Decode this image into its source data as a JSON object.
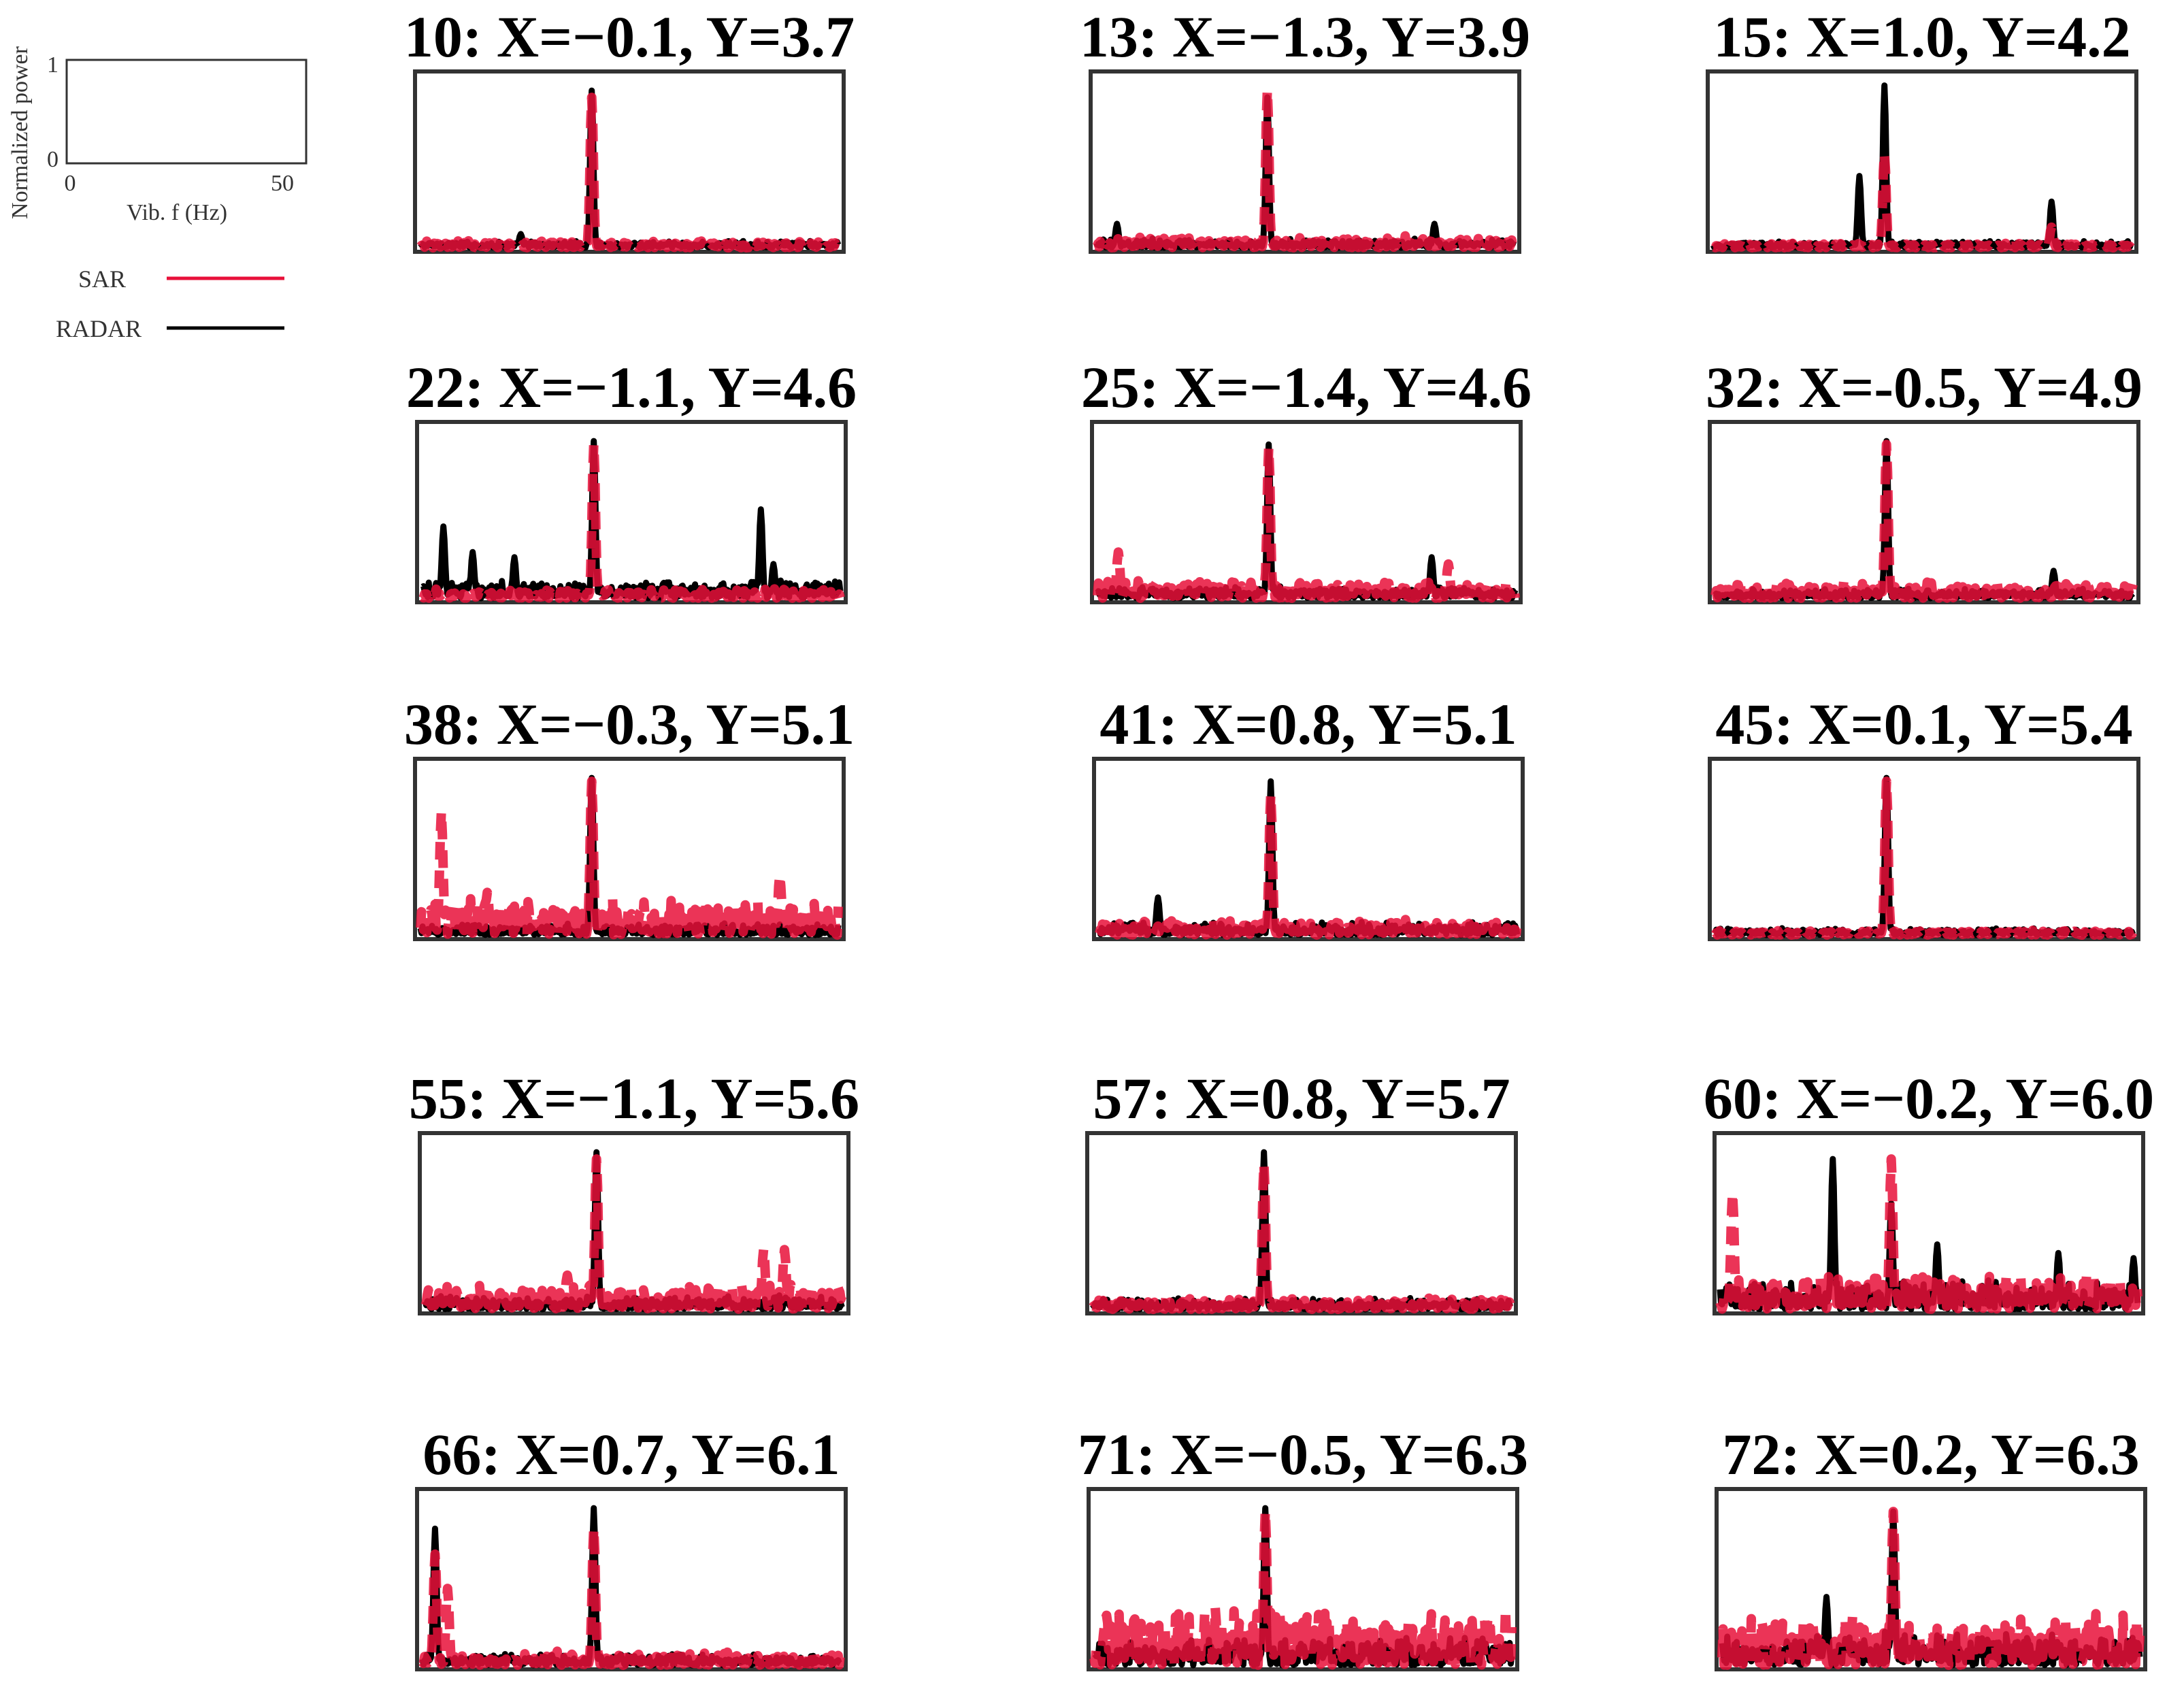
{
  "legend": {
    "ylabel": "Normalized power",
    "xlabel": "Vib. f (Hz)",
    "y_ticks": [
      "1",
      "0"
    ],
    "x_ticks": [
      "0",
      "50"
    ],
    "entries": [
      {
        "name": "SAR",
        "color": "#e8103a"
      },
      {
        "name": "RADAR",
        "color": "#000000"
      }
    ]
  },
  "chart_data": {
    "type": "line",
    "xlim": [
      0,
      50
    ],
    "ylim": [
      0,
      1
    ],
    "xlabel": "Vib. f (Hz)",
    "ylabel": "Normalized power",
    "series_colors": {
      "SAR": "#e8103a",
      "RADAR": "#000000"
    },
    "panels": [
      {
        "title": "10: X=−0.1, Y=3.7",
        "radar_peaks": [
          [
            20.5,
            0.92
          ],
          [
            12,
            0.08
          ]
        ],
        "sar_peaks": [
          [
            20.5,
            0.88
          ]
        ],
        "radar_noise": 0.03,
        "sar_noise": 0.03
      },
      {
        "title": "13: X=−1.3, Y=3.9",
        "radar_peaks": [
          [
            20.5,
            0.88
          ],
          [
            2.5,
            0.14
          ],
          [
            40.5,
            0.14
          ]
        ],
        "sar_peaks": [
          [
            20.5,
            0.92
          ]
        ],
        "radar_noise": 0.04,
        "sar_noise": 0.05
      },
      {
        "title": "15: X=1.0, Y=4.2",
        "radar_peaks": [
          [
            20.5,
            0.95
          ],
          [
            17.5,
            0.42
          ],
          [
            40.5,
            0.27
          ]
        ],
        "sar_peaks": [
          [
            20.5,
            0.55
          ],
          [
            40.5,
            0.12
          ]
        ],
        "radar_noise": 0.03,
        "sar_noise": 0.02
      },
      {
        "title": "22: X=−1.1, Y=4.6",
        "radar_peaks": [
          [
            20.5,
            0.92
          ],
          [
            40.5,
            0.52
          ],
          [
            2.5,
            0.42
          ],
          [
            6,
            0.27
          ],
          [
            11,
            0.24
          ],
          [
            42,
            0.2
          ]
        ],
        "sar_peaks": [
          [
            20.5,
            0.9
          ]
        ],
        "radar_noise": 0.08,
        "sar_noise": 0.04
      },
      {
        "title": "25: X=−1.4, Y=4.6",
        "radar_peaks": [
          [
            20.5,
            0.9
          ],
          [
            40,
            0.24
          ]
        ],
        "sar_peaks": [
          [
            20.5,
            0.88
          ],
          [
            2.5,
            0.27
          ],
          [
            42,
            0.2
          ]
        ],
        "radar_noise": 0.05,
        "sar_noise": 0.08
      },
      {
        "title": "32: X=-0.5, Y=4.9",
        "radar_peaks": [
          [
            20.5,
            0.92
          ],
          [
            40.5,
            0.16
          ]
        ],
        "sar_peaks": [
          [
            20.5,
            0.9
          ]
        ],
        "radar_noise": 0.04,
        "sar_noise": 0.07
      },
      {
        "title": "38: X=−0.3, Y=5.1",
        "radar_peaks": [
          [
            20.5,
            0.92
          ]
        ],
        "sar_peaks": [
          [
            20.5,
            0.9
          ],
          [
            2.5,
            0.72
          ],
          [
            43,
            0.35
          ],
          [
            8,
            0.25
          ]
        ],
        "radar_noise": 0.05,
        "sar_noise": 0.16
      },
      {
        "title": "41: X=0.8, Y=5.1",
        "radar_peaks": [
          [
            20.5,
            0.9
          ],
          [
            7,
            0.22
          ]
        ],
        "sar_peaks": [
          [
            20.5,
            0.82
          ]
        ],
        "radar_noise": 0.06,
        "sar_noise": 0.07
      },
      {
        "title": "45: X=0.1, Y=5.4",
        "radar_peaks": [
          [
            20.5,
            0.92
          ]
        ],
        "sar_peaks": [
          [
            20.5,
            0.9
          ]
        ],
        "radar_noise": 0.03,
        "sar_noise": 0.02
      },
      {
        "title": "55: X=−1.1, Y=5.6",
        "radar_peaks": [
          [
            20.5,
            0.92
          ]
        ],
        "sar_peaks": [
          [
            20.5,
            0.88
          ],
          [
            40.5,
            0.35
          ],
          [
            43,
            0.35
          ],
          [
            17,
            0.2
          ]
        ],
        "radar_noise": 0.06,
        "sar_noise": 0.11
      },
      {
        "title": "57: X=0.8, Y=5.7",
        "radar_peaks": [
          [
            20.5,
            0.92
          ]
        ],
        "sar_peaks": [
          [
            20.5,
            0.85
          ]
        ],
        "radar_noise": 0.05,
        "sar_noise": 0.05
      },
      {
        "title": "60: X=−0.2, Y=6.0",
        "radar_peaks": [
          [
            13.5,
            0.88
          ],
          [
            20.5,
            0.62
          ],
          [
            26,
            0.38
          ],
          [
            40.5,
            0.33
          ],
          [
            49.5,
            0.3
          ]
        ],
        "sar_peaks": [
          [
            20.5,
            0.88
          ],
          [
            1.5,
            0.68
          ]
        ],
        "radar_noise": 0.13,
        "sar_noise": 0.15
      },
      {
        "title": "66: X=0.7, Y=6.1",
        "radar_peaks": [
          [
            1.5,
            0.8
          ],
          [
            20.5,
            0.92
          ]
        ],
        "sar_peaks": [
          [
            1.5,
            0.65
          ],
          [
            3,
            0.45
          ],
          [
            20.5,
            0.8
          ]
        ],
        "radar_noise": 0.05,
        "sar_noise": 0.06
      },
      {
        "title": "71: X=−0.5, Y=6.3",
        "radar_peaks": [
          [
            20.5,
            0.92
          ]
        ],
        "sar_peaks": [
          [
            20.5,
            0.9
          ]
        ],
        "radar_noise": 0.12,
        "sar_noise": 0.25
      },
      {
        "title": "72: X=0.2, Y=6.3",
        "radar_peaks": [
          [
            20.5,
            0.9
          ],
          [
            12.5,
            0.4
          ]
        ],
        "sar_peaks": [
          [
            20.5,
            0.9
          ]
        ],
        "radar_noise": 0.15,
        "sar_noise": 0.22
      }
    ]
  }
}
